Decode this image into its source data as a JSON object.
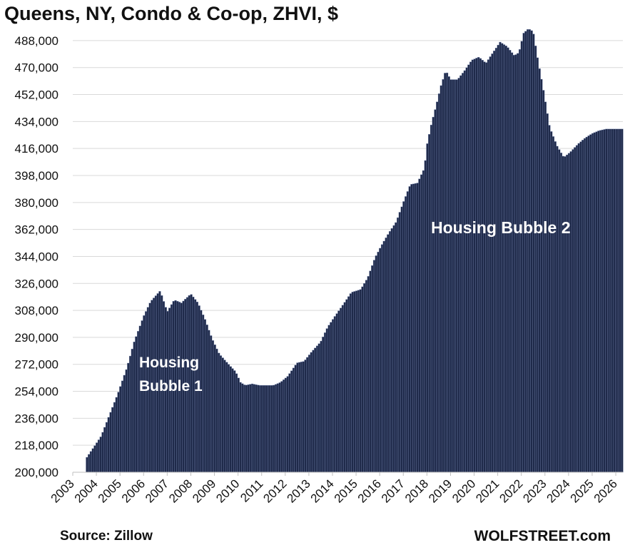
{
  "chart_data": {
    "type": "bar",
    "title": "Queens, NY, Condo & Co-op, ZHVI, $",
    "xlabel": "",
    "ylabel": "",
    "ylim": [
      200000,
      497000
    ],
    "yticks": [
      200000,
      218000,
      236000,
      254000,
      272000,
      290000,
      308000,
      326000,
      344000,
      362000,
      380000,
      398000,
      416000,
      434000,
      452000,
      470000,
      488000
    ],
    "ytick_labels": [
      "200,000",
      "218,000",
      "236,000",
      "254,000",
      "272,000",
      "290,000",
      "308,000",
      "326,000",
      "344,000",
      "362,000",
      "380,000",
      "398,000",
      "416,000",
      "434,000",
      "452,000",
      "470,000",
      "488,000"
    ],
    "x_range": [
      2003.0,
      2026.3
    ],
    "xticks": [
      "2003",
      "2004",
      "2005",
      "2006",
      "2007",
      "2008",
      "2009",
      "2010",
      "2011",
      "2012",
      "2013",
      "2014",
      "2015",
      "2016",
      "2017",
      "2018",
      "2019",
      "2020",
      "2021",
      "2022",
      "2023",
      "2024",
      "2025",
      "2026"
    ],
    "grid": true,
    "bar_color": "#1f2a4a",
    "bar_edge_color": "#7f8fb8",
    "grid_color": "#d9d9d9",
    "series_keypoints": [
      [
        2003.6,
        210000
      ],
      [
        2003.9,
        217000
      ],
      [
        2004.2,
        224000
      ],
      [
        2004.5,
        236000
      ],
      [
        2004.9,
        252000
      ],
      [
        2005.3,
        270000
      ],
      [
        2005.6,
        287000
      ],
      [
        2006.0,
        304000
      ],
      [
        2006.3,
        314000
      ],
      [
        2006.7,
        321000
      ],
      [
        2007.0,
        307000
      ],
      [
        2007.3,
        315000
      ],
      [
        2007.6,
        313000
      ],
      [
        2008.0,
        319000
      ],
      [
        2008.3,
        313000
      ],
      [
        2008.6,
        302000
      ],
      [
        2008.9,
        289000
      ],
      [
        2009.2,
        279000
      ],
      [
        2009.6,
        272000
      ],
      [
        2009.9,
        267000
      ],
      [
        2010.1,
        260000
      ],
      [
        2010.3,
        258000
      ],
      [
        2010.6,
        259000
      ],
      [
        2010.9,
        258000
      ],
      [
        2011.2,
        258000
      ],
      [
        2011.5,
        258000
      ],
      [
        2011.8,
        260000
      ],
      [
        2012.1,
        264000
      ],
      [
        2012.5,
        273000
      ],
      [
        2012.8,
        274000
      ],
      [
        2013.1,
        280000
      ],
      [
        2013.5,
        287000
      ],
      [
        2013.8,
        297000
      ],
      [
        2014.1,
        304000
      ],
      [
        2014.5,
        313000
      ],
      [
        2014.8,
        320000
      ],
      [
        2015.2,
        322000
      ],
      [
        2015.5,
        330000
      ],
      [
        2015.8,
        343000
      ],
      [
        2016.1,
        352000
      ],
      [
        2016.4,
        360000
      ],
      [
        2016.7,
        367000
      ],
      [
        2017.0,
        380000
      ],
      [
        2017.3,
        392000
      ],
      [
        2017.6,
        393000
      ],
      [
        2017.9,
        403000
      ],
      [
        2018.0,
        418000
      ],
      [
        2018.2,
        433000
      ],
      [
        2018.4,
        445000
      ],
      [
        2018.6,
        458000
      ],
      [
        2018.8,
        468000
      ],
      [
        2019.0,
        462000
      ],
      [
        2019.3,
        462000
      ],
      [
        2019.6,
        468000
      ],
      [
        2019.9,
        475000
      ],
      [
        2020.2,
        477000
      ],
      [
        2020.5,
        473000
      ],
      [
        2020.8,
        480000
      ],
      [
        2021.1,
        487000
      ],
      [
        2021.4,
        484000
      ],
      [
        2021.7,
        478000
      ],
      [
        2021.9,
        480000
      ],
      [
        2022.1,
        493000
      ],
      [
        2022.3,
        496000
      ],
      [
        2022.5,
        494000
      ],
      [
        2022.7,
        475000
      ],
      [
        2022.9,
        458000
      ],
      [
        2023.2,
        430000
      ],
      [
        2023.5,
        418000
      ],
      [
        2023.8,
        410000
      ],
      [
        2024.1,
        414000
      ],
      [
        2024.4,
        419000
      ],
      [
        2024.7,
        423000
      ],
      [
        2025.0,
        426000
      ],
      [
        2025.3,
        428000
      ],
      [
        2025.6,
        429000
      ],
      [
        2026.0,
        429000
      ],
      [
        2026.3,
        429000
      ]
    ],
    "annotations": [
      "Housing",
      "Bubble 1",
      "Housing Bubble 2"
    ],
    "source": "Source: Zillow",
    "credit": "WOLFSTREET.com"
  }
}
